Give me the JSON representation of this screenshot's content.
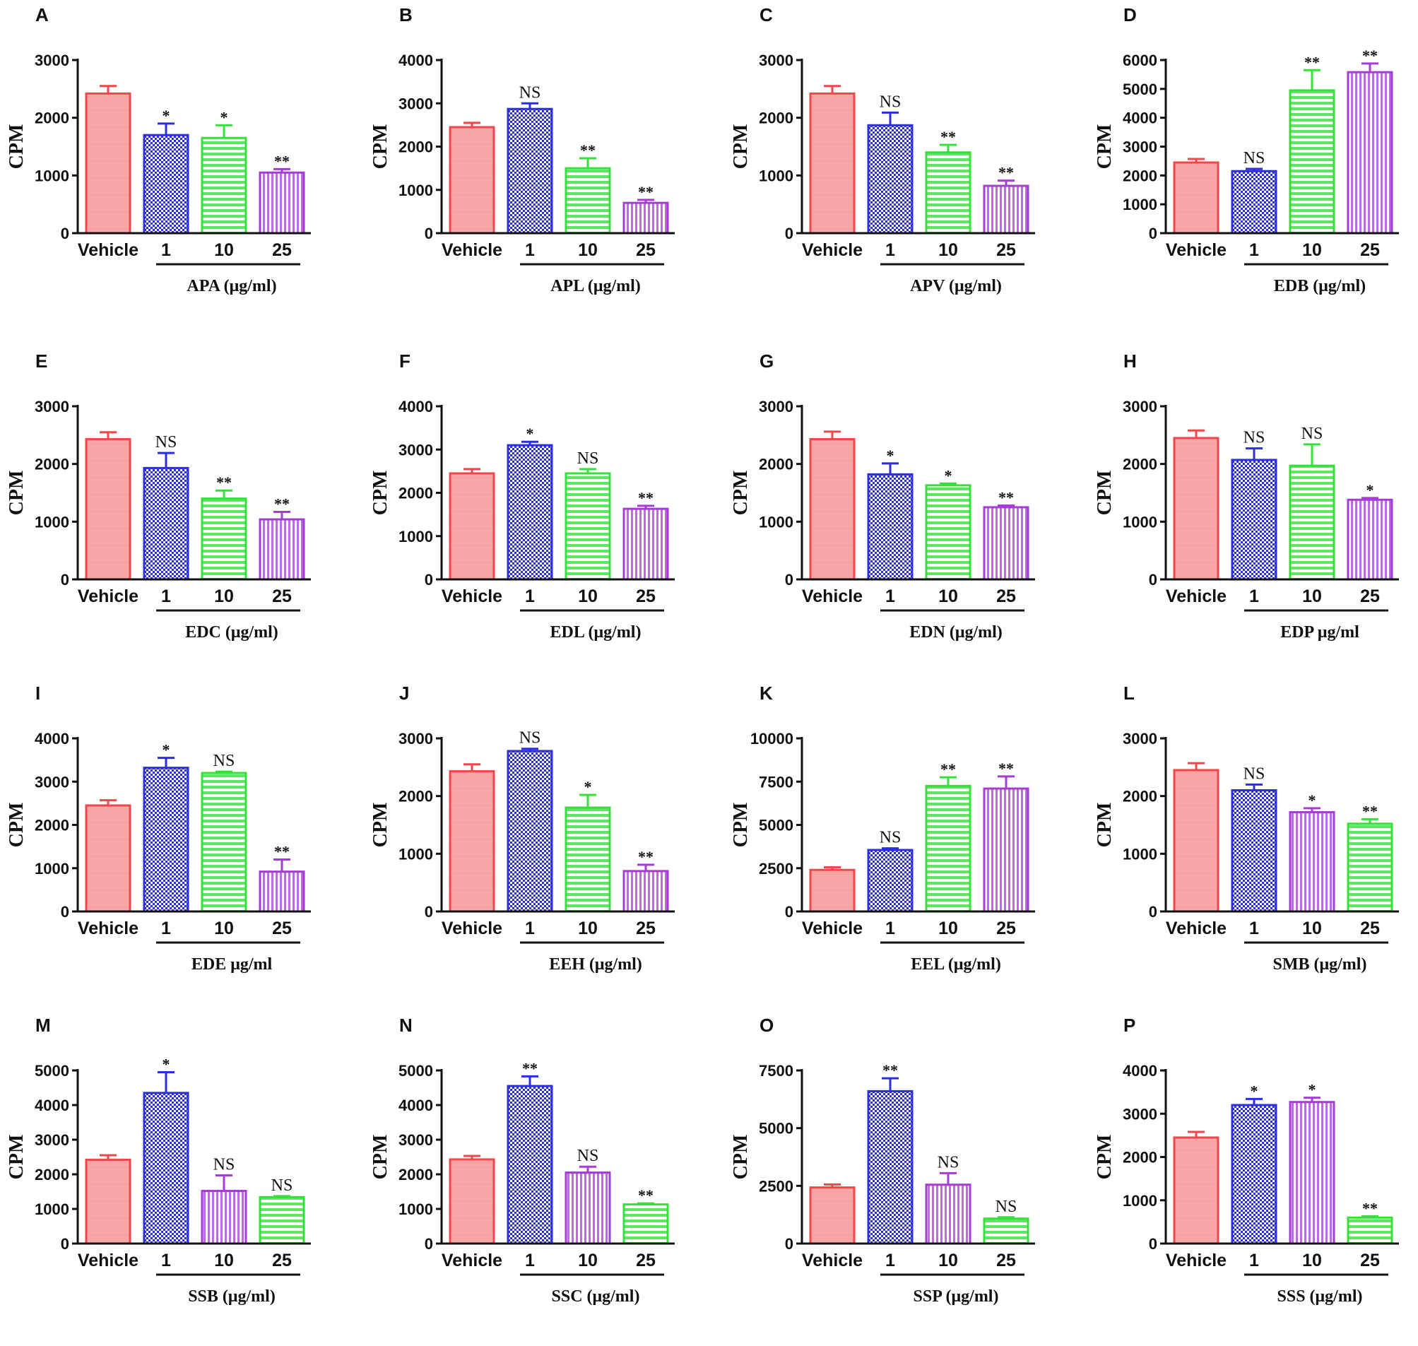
{
  "colors": {
    "vehicle": "#f0474c",
    "vehicle_fill": "#f7a2a3",
    "blue": "#2a2ee0",
    "green": "#36e03a",
    "purple": "#a63bd8",
    "axis": "#111111"
  },
  "chart_data": [
    {
      "panel": "A",
      "type": "bar",
      "ylabel": "CPM",
      "xlabel": "APA (μg/ml)",
      "categories": [
        "Vehicle",
        "1",
        "10",
        "25"
      ],
      "values": [
        2420,
        1700,
        1650,
        1050
      ],
      "errors": [
        130,
        200,
        220,
        60
      ],
      "ylim": [
        0,
        3000
      ],
      "yticks": [
        "0",
        "1000",
        "2000",
        "3000"
      ],
      "annotations": [
        "",
        "*",
        "*",
        "**"
      ],
      "colors": [
        "vehicle",
        "blue",
        "green",
        "purple"
      ]
    },
    {
      "panel": "B",
      "type": "bar",
      "ylabel": "CPM",
      "xlabel": "APL (μg/ml)",
      "categories": [
        "Vehicle",
        "1",
        "10",
        "25"
      ],
      "values": [
        2450,
        2870,
        1500,
        700
      ],
      "errors": [
        100,
        130,
        230,
        70
      ],
      "ylim": [
        0,
        4000
      ],
      "yticks": [
        "0",
        "1000",
        "2000",
        "3000",
        "4000"
      ],
      "annotations": [
        "",
        "NS",
        "**",
        "**"
      ],
      "colors": [
        "vehicle",
        "blue",
        "green",
        "purple"
      ]
    },
    {
      "panel": "C",
      "type": "bar",
      "ylabel": "CPM",
      "xlabel": "APV (μg/ml)",
      "categories": [
        "Vehicle",
        "1",
        "10",
        "25"
      ],
      "values": [
        2420,
        1870,
        1400,
        820
      ],
      "errors": [
        130,
        220,
        130,
        90
      ],
      "ylim": [
        0,
        3000
      ],
      "yticks": [
        "0",
        "1000",
        "2000",
        "3000"
      ],
      "annotations": [
        "",
        "NS",
        "**",
        "**"
      ],
      "colors": [
        "vehicle",
        "blue",
        "green",
        "purple"
      ]
    },
    {
      "panel": "D",
      "type": "bar",
      "ylabel": "CPM",
      "xlabel": "EDB (μg/ml)",
      "categories": [
        "Vehicle",
        "1",
        "10",
        "25"
      ],
      "values": [
        2450,
        2150,
        4950,
        5580
      ],
      "errors": [
        120,
        80,
        700,
        300
      ],
      "ylim": [
        0,
        6000
      ],
      "yticks": [
        "0",
        "1000",
        "2000",
        "3000",
        "4000",
        "5000",
        "6000"
      ],
      "annotations": [
        "",
        "NS",
        "**",
        "**"
      ],
      "colors": [
        "vehicle",
        "blue",
        "green",
        "purple"
      ]
    },
    {
      "panel": "E",
      "type": "bar",
      "ylabel": "CPM",
      "xlabel": "EDC (μg/ml)",
      "categories": [
        "Vehicle",
        "1",
        "10",
        "25"
      ],
      "values": [
        2430,
        1930,
        1400,
        1040
      ],
      "errors": [
        120,
        260,
        140,
        130
      ],
      "ylim": [
        0,
        3000
      ],
      "yticks": [
        "0",
        "1000",
        "2000",
        "3000"
      ],
      "annotations": [
        "",
        "NS",
        "**",
        "**"
      ],
      "colors": [
        "vehicle",
        "blue",
        "green",
        "purple"
      ]
    },
    {
      "panel": "F",
      "type": "bar",
      "ylabel": "CPM",
      "xlabel": "EDL (μg/ml)",
      "categories": [
        "Vehicle",
        "1",
        "10",
        "25"
      ],
      "values": [
        2450,
        3100,
        2450,
        1630
      ],
      "errors": [
        100,
        80,
        100,
        70
      ],
      "ylim": [
        0,
        4000
      ],
      "yticks": [
        "0",
        "1000",
        "2000",
        "3000",
        "4000"
      ],
      "annotations": [
        "",
        "*",
        "NS",
        "**"
      ],
      "colors": [
        "vehicle",
        "blue",
        "green",
        "purple"
      ]
    },
    {
      "panel": "G",
      "type": "bar",
      "ylabel": "CPM",
      "xlabel": "EDN (μg/ml)",
      "categories": [
        "Vehicle",
        "1",
        "10",
        "25"
      ],
      "values": [
        2430,
        1820,
        1630,
        1250
      ],
      "errors": [
        130,
        190,
        30,
        30
      ],
      "ylim": [
        0,
        3000
      ],
      "yticks": [
        "0",
        "1000",
        "2000",
        "3000"
      ],
      "annotations": [
        "",
        "*",
        "*",
        "**"
      ],
      "colors": [
        "vehicle",
        "blue",
        "green",
        "purple"
      ]
    },
    {
      "panel": "H",
      "type": "bar",
      "ylabel": "CPM",
      "xlabel": "EDP μg/ml",
      "categories": [
        "Vehicle",
        "1",
        "10",
        "25"
      ],
      "values": [
        2450,
        2070,
        1970,
        1380
      ],
      "errors": [
        130,
        200,
        370,
        30
      ],
      "ylim": [
        0,
        3000
      ],
      "yticks": [
        "0",
        "1000",
        "2000",
        "3000"
      ],
      "annotations": [
        "",
        "NS",
        "NS",
        "*"
      ],
      "colors": [
        "vehicle",
        "blue",
        "green",
        "purple"
      ]
    },
    {
      "panel": "I",
      "type": "bar",
      "ylabel": "CPM",
      "xlabel": "EDE μg/ml",
      "categories": [
        "Vehicle",
        "1",
        "10",
        "25"
      ],
      "values": [
        2450,
        3320,
        3200,
        920
      ],
      "errors": [
        120,
        230,
        30,
        280
      ],
      "ylim": [
        0,
        4000
      ],
      "yticks": [
        "0",
        "1000",
        "2000",
        "3000",
        "4000"
      ],
      "annotations": [
        "",
        "*",
        "NS",
        "**"
      ],
      "colors": [
        "vehicle",
        "blue",
        "green",
        "purple"
      ]
    },
    {
      "panel": "J",
      "type": "bar",
      "ylabel": "CPM",
      "xlabel": "EEH (μg/ml)",
      "categories": [
        "Vehicle",
        "1",
        "10",
        "25"
      ],
      "values": [
        2430,
        2780,
        1800,
        700
      ],
      "errors": [
        120,
        40,
        220,
        110
      ],
      "ylim": [
        0,
        3000
      ],
      "yticks": [
        "0",
        "1000",
        "2000",
        "3000"
      ],
      "annotations": [
        "",
        "NS",
        "*",
        "**"
      ],
      "colors": [
        "vehicle",
        "blue",
        "green",
        "purple"
      ]
    },
    {
      "panel": "K",
      "type": "bar",
      "ylabel": "CPM",
      "xlabel": "EEL (μg/ml)",
      "categories": [
        "Vehicle",
        "1",
        "10",
        "25"
      ],
      "values": [
        2400,
        3550,
        7250,
        7100
      ],
      "errors": [
        150,
        100,
        500,
        700
      ],
      "ylim": [
        0,
        10000
      ],
      "yticks": [
        "0",
        "2500",
        "5000",
        "7500",
        "10000"
      ],
      "annotations": [
        "",
        "NS",
        "**",
        "**"
      ],
      "colors": [
        "vehicle",
        "blue",
        "green",
        "purple"
      ]
    },
    {
      "panel": "L",
      "type": "bar",
      "ylabel": "CPM",
      "xlabel": "SMB (μg/ml)",
      "categories": [
        "Vehicle",
        "1",
        "10",
        "25"
      ],
      "values": [
        2450,
        2100,
        1720,
        1520
      ],
      "errors": [
        120,
        100,
        70,
        80
      ],
      "ylim": [
        0,
        3000
      ],
      "yticks": [
        "0",
        "1000",
        "2000",
        "3000"
      ],
      "annotations": [
        "",
        "NS",
        "*",
        "**"
      ],
      "colors": [
        "vehicle",
        "blue",
        "purple",
        "green"
      ]
    },
    {
      "panel": "M",
      "type": "bar",
      "ylabel": "CPM",
      "xlabel": "SSB (μg/ml)",
      "categories": [
        "Vehicle",
        "1",
        "10",
        "25"
      ],
      "values": [
        2420,
        4350,
        1520,
        1340
      ],
      "errors": [
        130,
        600,
        450,
        30
      ],
      "ylim": [
        0,
        5000
      ],
      "yticks": [
        "0",
        "1000",
        "2000",
        "3000",
        "4000",
        "5000"
      ],
      "annotations": [
        "",
        "*",
        "NS",
        "NS"
      ],
      "colors": [
        "vehicle",
        "blue",
        "purple",
        "green"
      ]
    },
    {
      "panel": "N",
      "type": "bar",
      "ylabel": "CPM",
      "xlabel": "SSC (μg/ml)",
      "categories": [
        "Vehicle",
        "1",
        "10",
        "25"
      ],
      "values": [
        2430,
        4550,
        2050,
        1130
      ],
      "errors": [
        100,
        280,
        170,
        30
      ],
      "ylim": [
        0,
        5000
      ],
      "yticks": [
        "0",
        "1000",
        "2000",
        "3000",
        "4000",
        "5000"
      ],
      "annotations": [
        "",
        "**",
        "NS",
        "**"
      ],
      "colors": [
        "vehicle",
        "blue",
        "purple",
        "green"
      ]
    },
    {
      "panel": "O",
      "type": "bar",
      "ylabel": "CPM",
      "xlabel": "SSP (μg/ml)",
      "categories": [
        "Vehicle",
        "1",
        "10",
        "25"
      ],
      "values": [
        2430,
        6600,
        2550,
        1080
      ],
      "errors": [
        130,
        560,
        500,
        60
      ],
      "ylim": [
        0,
        7500
      ],
      "yticks": [
        "0",
        "2500",
        "5000",
        "7500"
      ],
      "annotations": [
        "",
        "**",
        "NS",
        "NS"
      ],
      "colors": [
        "vehicle",
        "blue",
        "purple",
        "green"
      ]
    },
    {
      "panel": "P",
      "type": "bar",
      "ylabel": "CPM",
      "xlabel": "SSS (μg/ml)",
      "categories": [
        "Vehicle",
        "1",
        "10",
        "25"
      ],
      "values": [
        2450,
        3200,
        3270,
        600
      ],
      "errors": [
        130,
        140,
        100,
        30
      ],
      "ylim": [
        0,
        4000
      ],
      "yticks": [
        "0",
        "1000",
        "2000",
        "3000",
        "4000"
      ],
      "annotations": [
        "",
        "*",
        "*",
        "**"
      ],
      "colors": [
        "vehicle",
        "blue",
        "purple",
        "green"
      ]
    }
  ]
}
